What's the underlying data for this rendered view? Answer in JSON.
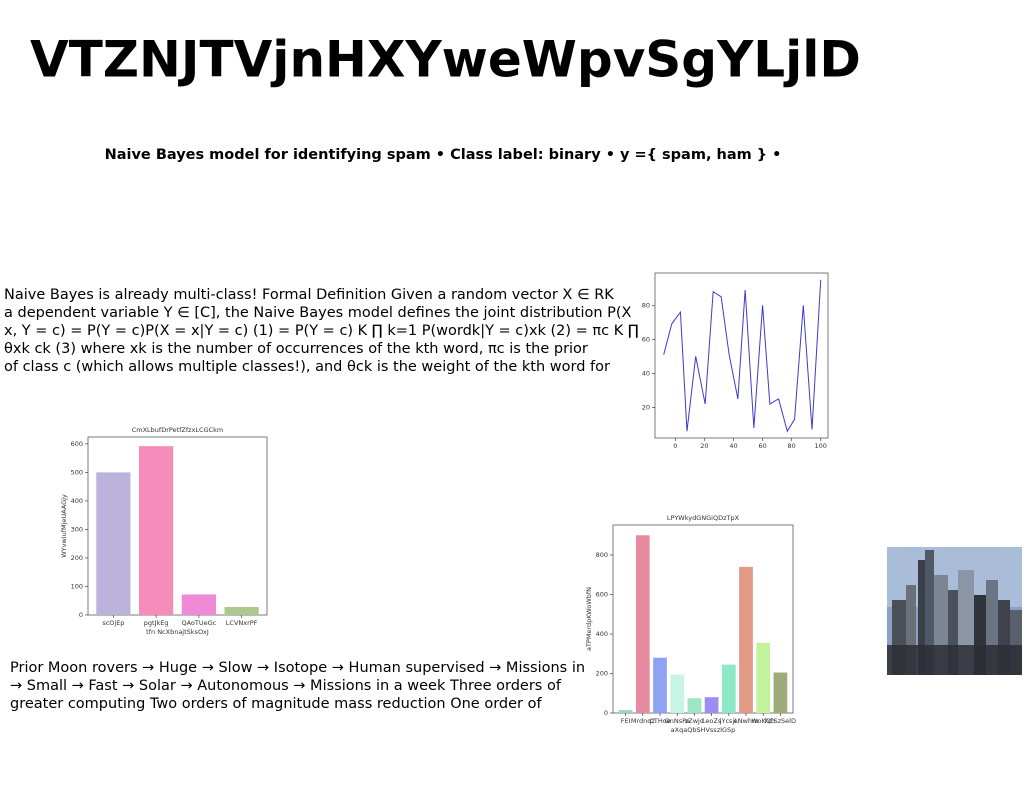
{
  "header": {
    "title": "VTZNJTVjnHXYweWpvSgYLjlD",
    "subtitle": "Naive Bayes model for identifying spam • Class label: binary • y ={ spam, ham } •"
  },
  "paragraphs": [
    {
      "lines": [
        "Naive Bayes is already multi-class! Formal Definition Given a random vector X ∈ RK",
        "a dependent variable Y ∈ [C], the Naive Bayes model defines the joint distribution P(X",
        "x, Y = c) = P(Y = c)P(X = x|Y = c) (1) = P(Y = c) K ∏ k=1 P(wordk|Y = c)xk (2) = πc K ∏",
        "θxk ck (3) where xk is the number of occurrences of the kth word, πc is the prior",
        "of class c (which allows multiple classes!), and θck is the weight of the kth word for"
      ]
    },
    {
      "lines": [
        "Prior Moon rovers → Huge → Slow → Isotope → Human supervised → Missions in",
        "→ Small → Fast → Solar → Autonomous → Missions in a week Three orders of",
        "greater computing Two orders of magnitude mass reduction One order of"
      ]
    }
  ],
  "charts": [
    {
      "type": "line",
      "x": [
        -8,
        -2.5,
        3.5,
        8,
        14,
        20.5,
        26,
        31.5,
        37,
        43,
        48,
        54,
        60,
        65,
        71,
        77,
        82,
        88,
        94,
        100
      ],
      "values": [
        51,
        69,
        76,
        6,
        50,
        22,
        88,
        85,
        51,
        25,
        89,
        8,
        80,
        22,
        25,
        6,
        13,
        80,
        7,
        95
      ],
      "color": "#3b3bd0",
      "xlim": [
        -14,
        105
      ],
      "ylim": [
        2,
        99
      ],
      "xticks": [
        0,
        20,
        40,
        60,
        80,
        100
      ],
      "yticks": [
        20,
        40,
        60,
        80
      ]
    },
    {
      "type": "bar",
      "title": "CmXLbufDrPetfZfzxLCGCkm",
      "xlabel": "tfn NcXbnajtSksOxJ",
      "ylabel": "WYvwiufMjeUAAGjy",
      "categories": [
        "scOjEp",
        "pgtJkEg",
        "QAoTUeGc",
        "LCVNxrPF"
      ],
      "values": [
        500,
        592,
        72,
        28
      ],
      "colors": [
        "#bcb3dd",
        "#f58cba",
        "#ef8ad6",
        "#a9c98e"
      ],
      "ylim": [
        0,
        624
      ],
      "yticks": [
        0,
        100,
        200,
        300,
        400,
        500,
        600
      ]
    },
    {
      "type": "bar",
      "title": "LPYWkydGNGiQDzTpX",
      "xlabel": "aXqaQbSHVsszIGSp",
      "ylabel": "aTPMerdpKWoWbfN",
      "categories": [
        "FEI",
        "Mrdnqz",
        "CTHoe",
        "OnNsPe",
        "zZwjd",
        "LeoZs",
        "jYcsjL",
        "eNwhm",
        "WoKQh",
        "hCSzSelD"
      ],
      "values": [
        15,
        900,
        280,
        195,
        75,
        80,
        245,
        740,
        355,
        205
      ],
      "colors": [
        "#9fd6c0",
        "#e88aa0",
        "#8fa3f2",
        "#c6f5e6",
        "#9de8c2",
        "#9c8ef0",
        "#8ee8c8",
        "#e09a86",
        "#c2f29c",
        "#9fab7a"
      ],
      "ylim": [
        0,
        952
      ],
      "yticks": [
        0,
        200,
        400,
        600,
        800
      ]
    }
  ]
}
